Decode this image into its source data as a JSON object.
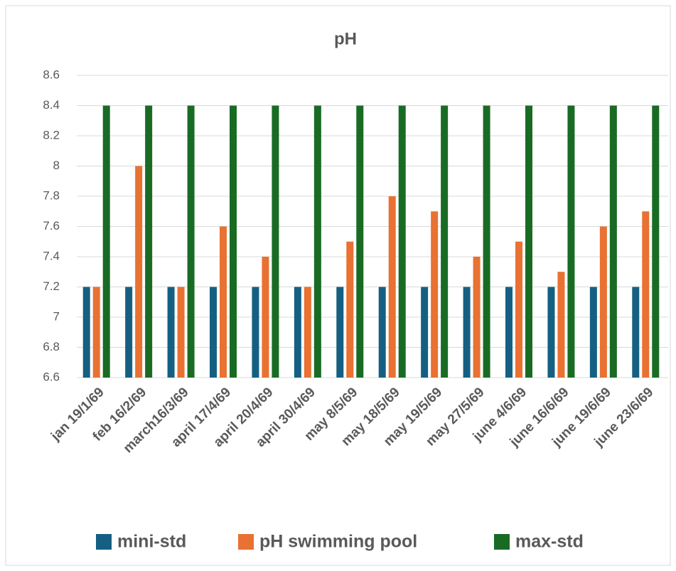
{
  "chart_data": {
    "type": "bar",
    "title": "pH",
    "categories": [
      "jan 19/1/69",
      "feb 16/2/69",
      "march16/3/69",
      "april 17/4/69",
      "april  20/4/69",
      "april  30/4/69",
      "may 8/5/69",
      "may 18/5/69",
      "may 19/5/69",
      "may 27/5/69",
      "june 4/6/69",
      "june 16/6/69",
      "june 19/6/69",
      "june 23/6/69"
    ],
    "series": [
      {
        "name": "mini-std",
        "color": "#156082",
        "values": [
          7.2,
          7.2,
          7.2,
          7.2,
          7.2,
          7.2,
          7.2,
          7.2,
          7.2,
          7.2,
          7.2,
          7.2,
          7.2,
          7.2
        ]
      },
      {
        "name": "pH swimming pool",
        "color": "#E97132",
        "values": [
          7.2,
          8,
          7.2,
          7.6,
          7.4,
          7.2,
          7.5,
          7.8,
          7.7,
          7.4,
          7.5,
          7.3,
          7.6,
          7.7
        ]
      },
      {
        "name": "max-std",
        "color": "#196B24",
        "values": [
          8.4,
          8.4,
          8.4,
          8.4,
          8.4,
          8.4,
          8.4,
          8.4,
          8.4,
          8.4,
          8.4,
          8.4,
          8.4,
          8.4
        ]
      }
    ],
    "ylim": [
      6.6,
      8.6
    ],
    "yticks": [
      6.6,
      6.8,
      7,
      7.2,
      7.4,
      7.6,
      7.8,
      8,
      8.2,
      8.4,
      8.6
    ],
    "grid": true,
    "legend": "bottom"
  }
}
